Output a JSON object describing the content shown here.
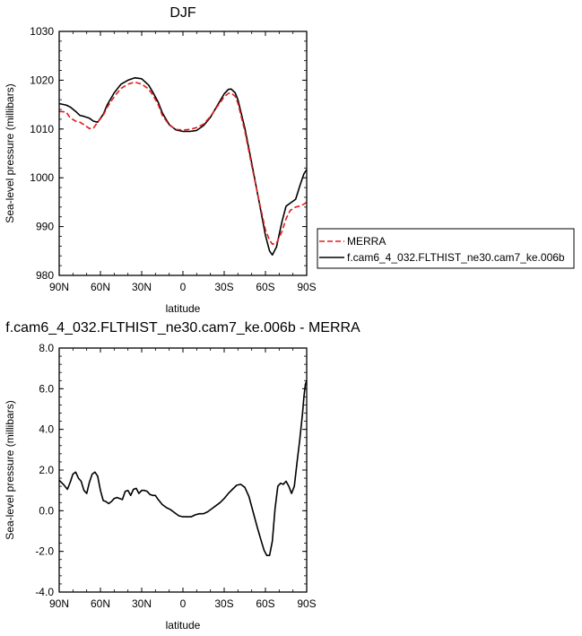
{
  "chart_data": [
    {
      "type": "line",
      "title": "DJF",
      "xlabel": "latitude",
      "ylabel": "Sea-level pressure (millibars)",
      "xlim": [
        -90,
        90
      ],
      "ylim": [
        980,
        1030
      ],
      "xticks": [
        -90,
        -60,
        -30,
        0,
        30,
        60,
        90
      ],
      "xtick_labels": [
        "90N",
        "60N",
        "30N",
        "0",
        "30S",
        "60S",
        "90S"
      ],
      "yticks": [
        980,
        990,
        1000,
        1010,
        1020,
        1030
      ],
      "ytick_labels": [
        "980",
        "990",
        "1000",
        "1010",
        "1020",
        "1030"
      ],
      "grid": false,
      "legend": {
        "position": "right",
        "entries": [
          {
            "label": "MERRA",
            "color": "#e41a1c",
            "dash": "dashed"
          },
          {
            "label": "f.cam6_4_032.FLTHIST_ne30.cam7_ke.006b",
            "color": "#000000",
            "dash": "solid"
          }
        ]
      },
      "series": [
        {
          "name": "MERRA",
          "color": "#e41a1c",
          "dash": "dashed",
          "x": [
            -90,
            -85,
            -82,
            -78,
            -75,
            -72,
            -68,
            -65,
            -62,
            -58,
            -55,
            -50,
            -45,
            -40,
            -35,
            -30,
            -25,
            -22,
            -18,
            -15,
            -10,
            -5,
            0,
            5,
            10,
            15,
            20,
            25,
            30,
            33,
            35,
            38,
            40,
            45,
            50,
            55,
            60,
            63,
            65,
            68,
            72,
            75,
            78,
            82,
            85,
            88,
            90
          ],
          "y": [
            1013.6,
            1013.5,
            1012.3,
            1011.6,
            1011.4,
            1010.9,
            1010.1,
            1010.2,
            1011.4,
            1012.8,
            1014.5,
            1016.6,
            1018.3,
            1019.2,
            1019.6,
            1019.2,
            1018.2,
            1017.0,
            1015.0,
            1012.8,
            1010.8,
            1009.9,
            1009.8,
            1009.9,
            1010.3,
            1011.0,
            1012.6,
            1014.6,
            1016.6,
            1017.3,
            1017.4,
            1016.7,
            1015.3,
            1009.6,
            1002.5,
            995.8,
            989.3,
            987.2,
            986.4,
            986.6,
            989.0,
            991.6,
            993.3,
            994.0,
            994.2,
            994.6,
            995.0
          ]
        },
        {
          "name": "f.cam6_4_032.FLTHIST_ne30.cam7_ke.006b",
          "color": "#000000",
          "dash": "solid",
          "x": [
            -90,
            -85,
            -82,
            -78,
            -75,
            -72,
            -68,
            -65,
            -62,
            -58,
            -55,
            -50,
            -45,
            -40,
            -35,
            -30,
            -25,
            -22,
            -18,
            -15,
            -10,
            -5,
            0,
            5,
            10,
            15,
            20,
            25,
            30,
            33,
            35,
            38,
            40,
            45,
            50,
            55,
            60,
            63,
            65,
            68,
            72,
            75,
            78,
            82,
            85,
            88,
            90
          ],
          "y": [
            1015.2,
            1014.9,
            1014.5,
            1013.6,
            1012.8,
            1012.6,
            1012.2,
            1011.6,
            1011.4,
            1013.0,
            1015.0,
            1017.4,
            1019.2,
            1020.0,
            1020.5,
            1020.3,
            1019.0,
            1017.6,
            1015.5,
            1013.3,
            1010.9,
            1009.8,
            1009.5,
            1009.5,
            1009.7,
            1010.7,
            1012.4,
            1014.8,
            1017.2,
            1018.1,
            1018.2,
            1017.4,
            1016.0,
            1010.2,
            1003.0,
            995.7,
            988.2,
            985.0,
            984.2,
            985.8,
            991.0,
            994.2,
            994.8,
            995.6,
            998.3,
            1000.8,
            1001.7
          ]
        }
      ]
    },
    {
      "type": "line",
      "title": "f.cam6_4_032.FLTHIST_ne30.cam7_ke.006b - MERRA",
      "xlabel": "latitude",
      "ylabel": "Sea-level pressure (millibars)",
      "xlim": [
        -90,
        90
      ],
      "ylim": [
        -4,
        8
      ],
      "xticks": [
        -90,
        -60,
        -30,
        0,
        30,
        60,
        90
      ],
      "xtick_labels": [
        "90N",
        "60N",
        "30N",
        "0",
        "30S",
        "60S",
        "90S"
      ],
      "yticks": [
        -4,
        -2,
        0,
        2,
        4,
        6,
        8
      ],
      "ytick_labels": [
        "-4.0",
        "-2.0",
        "0.0",
        "2.0",
        "4.0",
        "6.0",
        "8.0"
      ],
      "grid": false,
      "series": [
        {
          "color": "#000000",
          "dash": "solid",
          "x": [
            -90,
            -87,
            -84,
            -82,
            -80,
            -78,
            -76,
            -74,
            -72,
            -70,
            -68,
            -66,
            -64,
            -62,
            -60,
            -58,
            -56,
            -54,
            -52,
            -50,
            -48,
            -46,
            -44,
            -42,
            -40,
            -38,
            -36,
            -34,
            -32,
            -30,
            -28,
            -26,
            -24,
            -22,
            -20,
            -18,
            -15,
            -12,
            -9,
            -6,
            -3,
            0,
            3,
            6,
            9,
            12,
            15,
            18,
            21,
            24,
            27,
            30,
            33,
            36,
            39,
            42,
            45,
            48,
            51,
            54,
            57,
            59,
            61,
            63,
            65,
            67,
            69,
            71,
            73,
            75,
            77,
            79,
            81,
            83,
            85,
            87,
            88,
            89,
            90
          ],
          "y": [
            1.5,
            1.3,
            1.05,
            1.4,
            1.8,
            1.9,
            1.6,
            1.45,
            1.0,
            0.85,
            1.4,
            1.8,
            1.9,
            1.7,
            1.0,
            0.5,
            0.45,
            0.35,
            0.45,
            0.6,
            0.65,
            0.6,
            0.55,
            0.95,
            1.0,
            0.75,
            1.05,
            1.1,
            0.85,
            1.0,
            1.0,
            0.95,
            0.8,
            0.75,
            0.75,
            0.55,
            0.3,
            0.15,
            0.05,
            -0.1,
            -0.25,
            -0.3,
            -0.3,
            -0.3,
            -0.2,
            -0.15,
            -0.15,
            -0.05,
            0.1,
            0.25,
            0.4,
            0.6,
            0.85,
            1.05,
            1.25,
            1.3,
            1.15,
            0.7,
            -0.05,
            -0.8,
            -1.5,
            -1.95,
            -2.2,
            -2.2,
            -1.5,
            0.1,
            1.2,
            1.35,
            1.3,
            1.45,
            1.2,
            0.85,
            1.2,
            2.4,
            3.5,
            4.8,
            5.6,
            6.2,
            6.4
          ]
        }
      ]
    }
  ]
}
